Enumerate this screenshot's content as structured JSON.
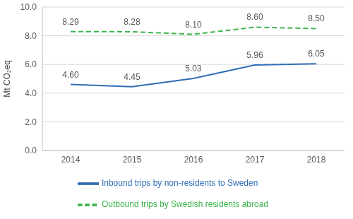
{
  "chart_data": {
    "type": "line",
    "y_label": "Mt CO₂eq",
    "categories": [
      "2014",
      "2015",
      "2016",
      "2017",
      "2018"
    ],
    "series": [
      {
        "name": "Inbound trips by non-residents to Sweden",
        "color": "#2f6db5",
        "line_style": "solid",
        "values": [
          4.6,
          4.45,
          5.03,
          5.96,
          6.05
        ],
        "value_labels": [
          "4.60",
          "4.45",
          "5.03",
          "5.96",
          "6.05"
        ]
      },
      {
        "name": "Outbound trips by Swedish residents abroad",
        "color": "#3cb44b",
        "line_style": "dashed",
        "values": [
          8.29,
          8.28,
          8.1,
          8.6,
          8.5
        ],
        "value_labels": [
          "8.29",
          "8.28",
          "8.10",
          "8.60",
          "8.50"
        ]
      }
    ],
    "ylim": [
      0,
      10
    ],
    "yticks": [
      {
        "value": 0,
        "label": "0.0"
      },
      {
        "value": 2,
        "label": "2.0"
      },
      {
        "value": 4,
        "label": "4.0"
      },
      {
        "value": 6,
        "label": "6.0"
      },
      {
        "value": 8,
        "label": "8.0"
      },
      {
        "value": 10,
        "label": "10.0"
      }
    ],
    "grid": true,
    "data_labels": true,
    "legend": "bottom"
  }
}
